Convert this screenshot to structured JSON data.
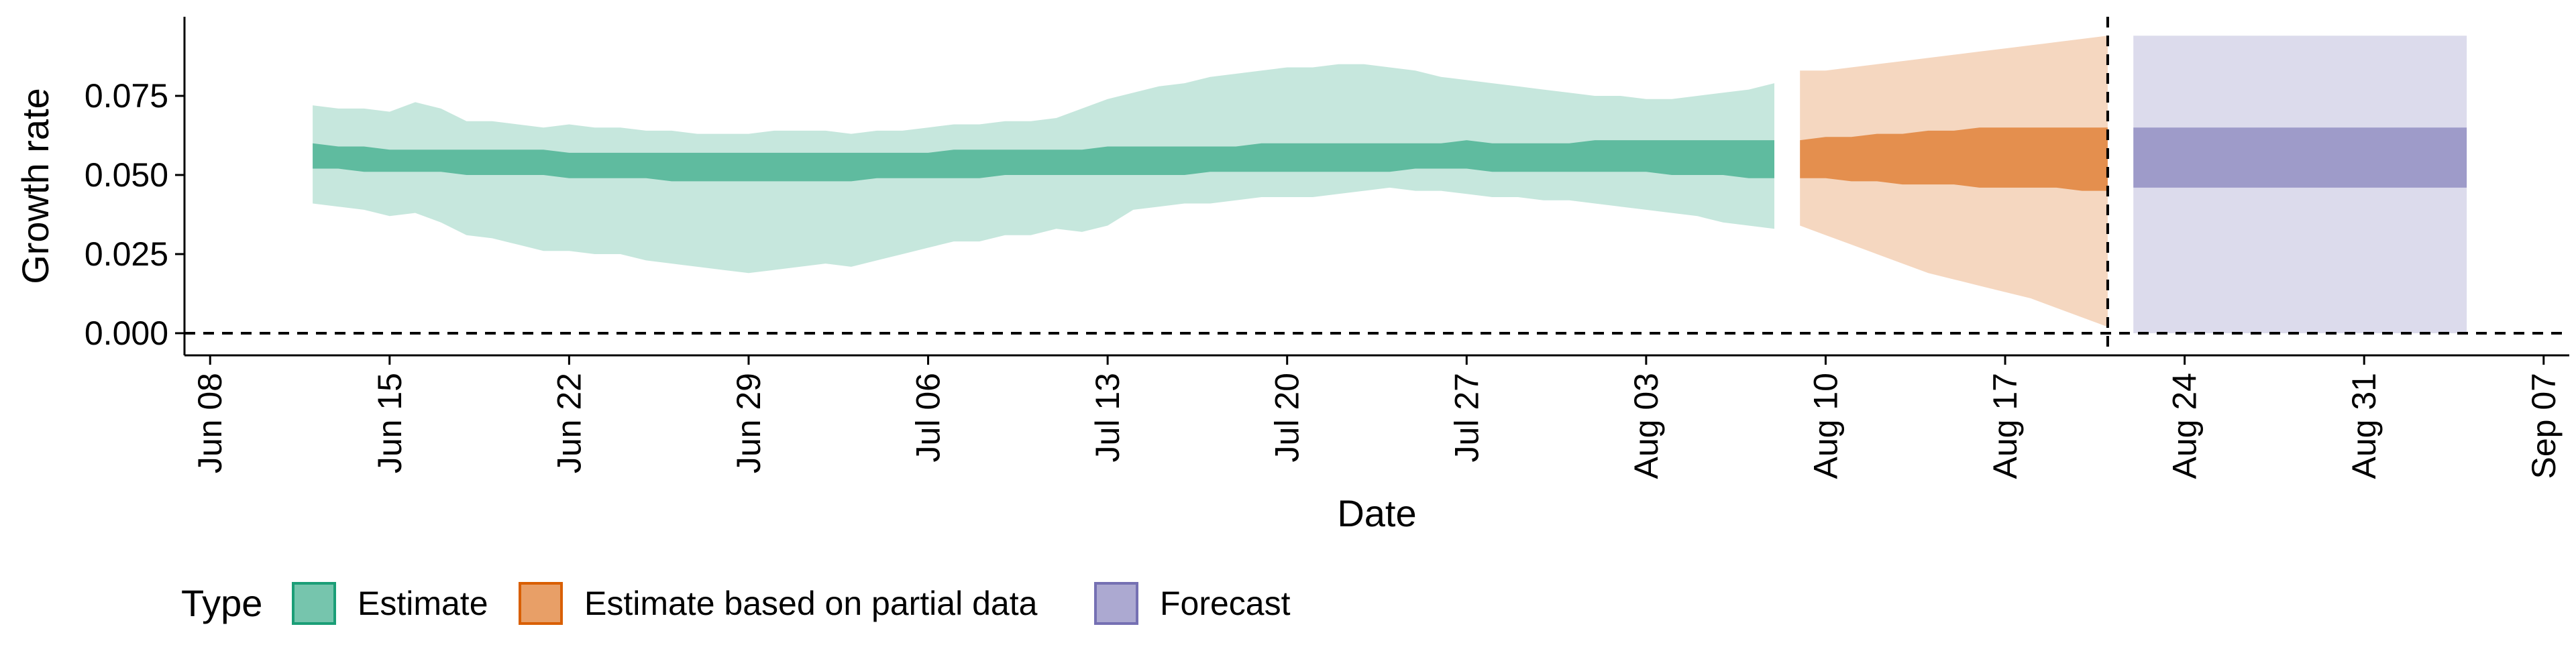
{
  "chart_data": {
    "type": "area",
    "xlabel": "Date",
    "ylabel": "Growth rate",
    "xlim": [
      "2020-06-07",
      "2020-09-08"
    ],
    "ylim": [
      -0.007,
      0.1
    ],
    "x_ticks": [
      "Jun 08",
      "Jun 15",
      "Jun 22",
      "Jun 29",
      "Jul 06",
      "Jul 13",
      "Jul 20",
      "Jul 27",
      "Aug 03",
      "Aug 10",
      "Aug 17",
      "Aug 24",
      "Aug 31",
      "Sep 07"
    ],
    "y_ticks": [
      "0.000",
      "0.025",
      "0.050",
      "0.075"
    ],
    "reference_lines": [
      {
        "orientation": "horizontal",
        "y": 0,
        "style": "dashed"
      },
      {
        "orientation": "vertical",
        "x": "2020-08-21",
        "style": "dashed"
      }
    ],
    "legend": {
      "title": "Type",
      "position": "bottom-left",
      "items": [
        "Estimate",
        "Estimate based on partial data",
        "Forecast"
      ]
    },
    "colors": {
      "Estimate": "#1b9e77",
      "Estimate based on partial data": "#d95f02",
      "Forecast": "#7570b3"
    },
    "series": [
      {
        "name": "Estimate",
        "x": [
          "2020-06-12",
          "2020-06-13",
          "2020-06-14",
          "2020-06-15",
          "2020-06-16",
          "2020-06-17",
          "2020-06-18",
          "2020-06-19",
          "2020-06-20",
          "2020-06-21",
          "2020-06-22",
          "2020-06-23",
          "2020-06-24",
          "2020-06-25",
          "2020-06-26",
          "2020-06-27",
          "2020-06-28",
          "2020-06-29",
          "2020-06-30",
          "2020-07-01",
          "2020-07-02",
          "2020-07-03",
          "2020-07-04",
          "2020-07-05",
          "2020-07-06",
          "2020-07-07",
          "2020-07-08",
          "2020-07-09",
          "2020-07-10",
          "2020-07-11",
          "2020-07-12",
          "2020-07-13",
          "2020-07-14",
          "2020-07-15",
          "2020-07-16",
          "2020-07-17",
          "2020-07-18",
          "2020-07-19",
          "2020-07-20",
          "2020-07-21",
          "2020-07-22",
          "2020-07-23",
          "2020-07-24",
          "2020-07-25",
          "2020-07-26",
          "2020-07-27",
          "2020-07-28",
          "2020-07-29",
          "2020-07-30",
          "2020-07-31",
          "2020-08-01",
          "2020-08-02",
          "2020-08-03",
          "2020-08-04",
          "2020-08-05",
          "2020-08-06",
          "2020-08-07",
          "2020-08-08"
        ],
        "lower_90": [
          0.041,
          0.04,
          0.039,
          0.037,
          0.038,
          0.035,
          0.031,
          0.03,
          0.028,
          0.026,
          0.026,
          0.025,
          0.025,
          0.023,
          0.022,
          0.021,
          0.02,
          0.019,
          0.02,
          0.021,
          0.022,
          0.021,
          0.023,
          0.025,
          0.027,
          0.029,
          0.029,
          0.031,
          0.031,
          0.033,
          0.032,
          0.034,
          0.039,
          0.04,
          0.041,
          0.041,
          0.042,
          0.043,
          0.043,
          0.043,
          0.044,
          0.045,
          0.046,
          0.045,
          0.045,
          0.044,
          0.043,
          0.043,
          0.042,
          0.042,
          0.041,
          0.04,
          0.039,
          0.038,
          0.037,
          0.035,
          0.034,
          0.033
        ],
        "upper_90": [
          0.072,
          0.071,
          0.071,
          0.07,
          0.073,
          0.071,
          0.067,
          0.067,
          0.066,
          0.065,
          0.066,
          0.065,
          0.065,
          0.064,
          0.064,
          0.063,
          0.063,
          0.063,
          0.064,
          0.064,
          0.064,
          0.063,
          0.064,
          0.064,
          0.065,
          0.066,
          0.066,
          0.067,
          0.067,
          0.068,
          0.071,
          0.074,
          0.076,
          0.078,
          0.079,
          0.081,
          0.082,
          0.083,
          0.084,
          0.084,
          0.085,
          0.085,
          0.084,
          0.083,
          0.081,
          0.08,
          0.079,
          0.078,
          0.077,
          0.076,
          0.075,
          0.075,
          0.074,
          0.074,
          0.075,
          0.076,
          0.077,
          0.079
        ],
        "lower_50": [
          0.052,
          0.052,
          0.051,
          0.051,
          0.051,
          0.051,
          0.05,
          0.05,
          0.05,
          0.05,
          0.049,
          0.049,
          0.049,
          0.049,
          0.048,
          0.048,
          0.048,
          0.048,
          0.048,
          0.048,
          0.048,
          0.048,
          0.049,
          0.049,
          0.049,
          0.049,
          0.049,
          0.05,
          0.05,
          0.05,
          0.05,
          0.05,
          0.05,
          0.05,
          0.05,
          0.051,
          0.051,
          0.051,
          0.051,
          0.051,
          0.051,
          0.051,
          0.051,
          0.052,
          0.052,
          0.052,
          0.051,
          0.051,
          0.051,
          0.051,
          0.051,
          0.051,
          0.051,
          0.05,
          0.05,
          0.05,
          0.049,
          0.049
        ],
        "upper_50": [
          0.06,
          0.059,
          0.059,
          0.058,
          0.058,
          0.058,
          0.058,
          0.058,
          0.058,
          0.058,
          0.057,
          0.057,
          0.057,
          0.057,
          0.057,
          0.057,
          0.057,
          0.057,
          0.057,
          0.057,
          0.057,
          0.057,
          0.057,
          0.057,
          0.057,
          0.058,
          0.058,
          0.058,
          0.058,
          0.058,
          0.058,
          0.059,
          0.059,
          0.059,
          0.059,
          0.059,
          0.059,
          0.06,
          0.06,
          0.06,
          0.06,
          0.06,
          0.06,
          0.06,
          0.06,
          0.061,
          0.06,
          0.06,
          0.06,
          0.06,
          0.061,
          0.061,
          0.061,
          0.061,
          0.061,
          0.061,
          0.061,
          0.061
        ]
      },
      {
        "name": "Estimate based on partial data",
        "x": [
          "2020-08-09",
          "2020-08-10",
          "2020-08-11",
          "2020-08-12",
          "2020-08-13",
          "2020-08-14",
          "2020-08-15",
          "2020-08-16",
          "2020-08-17",
          "2020-08-18",
          "2020-08-19",
          "2020-08-20",
          "2020-08-21"
        ],
        "lower_90": [
          0.034,
          0.031,
          0.028,
          0.025,
          0.022,
          0.019,
          0.017,
          0.015,
          0.013,
          0.011,
          0.008,
          0.005,
          0.002
        ],
        "upper_90": [
          0.083,
          0.083,
          0.084,
          0.085,
          0.086,
          0.087,
          0.088,
          0.089,
          0.09,
          0.091,
          0.092,
          0.093,
          0.094
        ],
        "lower_50": [
          0.049,
          0.049,
          0.048,
          0.048,
          0.047,
          0.047,
          0.047,
          0.046,
          0.046,
          0.046,
          0.046,
          0.045,
          0.045
        ],
        "upper_50": [
          0.061,
          0.062,
          0.062,
          0.063,
          0.063,
          0.064,
          0.064,
          0.065,
          0.065,
          0.065,
          0.065,
          0.065,
          0.065
        ]
      },
      {
        "name": "Forecast",
        "x": [
          "2020-08-22",
          "2020-09-04"
        ],
        "lower_90": [
          0.0,
          0.0
        ],
        "upper_90": [
          0.094,
          0.094
        ],
        "lower_50": [
          0.046,
          0.046
        ],
        "upper_50": [
          0.065,
          0.065
        ]
      }
    ]
  }
}
